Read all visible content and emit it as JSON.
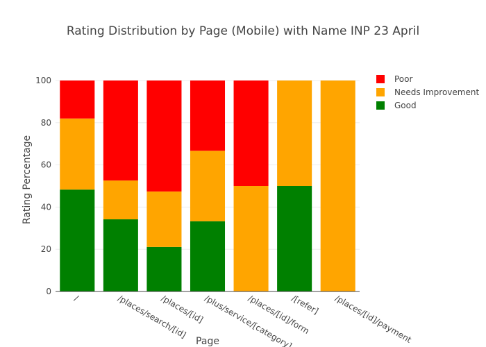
{
  "chart_data": {
    "type": "bar",
    "stacked": true,
    "title": "Rating Distribution by Page (Mobile) with Name INP 23 April",
    "xlabel": "Page",
    "ylabel": "Rating Percentage",
    "ylim": [
      0,
      100
    ],
    "yticks": [
      0,
      20,
      40,
      60,
      80,
      100
    ],
    "grid": true,
    "legend_position": "top-right",
    "categories": [
      "/",
      "/places/search/[id]",
      "/places/[id]",
      "/plus/service/[category]",
      "/places/[id]/form",
      "/[refer]",
      "/places/[id]/payment"
    ],
    "series": [
      {
        "name": "Good",
        "color": "#008000",
        "values": [
          48.3,
          34.2,
          21.1,
          33.3,
          0,
          50,
          0
        ]
      },
      {
        "name": "Needs Improvement",
        "color": "#FFA500",
        "values": [
          33.7,
          18.4,
          26.3,
          33.4,
          50,
          50,
          100
        ]
      },
      {
        "name": "Poor",
        "color": "#FF0000",
        "values": [
          18.0,
          47.4,
          52.6,
          33.3,
          50,
          0,
          0
        ]
      }
    ],
    "legend_order": [
      "Poor",
      "Needs Improvement",
      "Good"
    ]
  }
}
